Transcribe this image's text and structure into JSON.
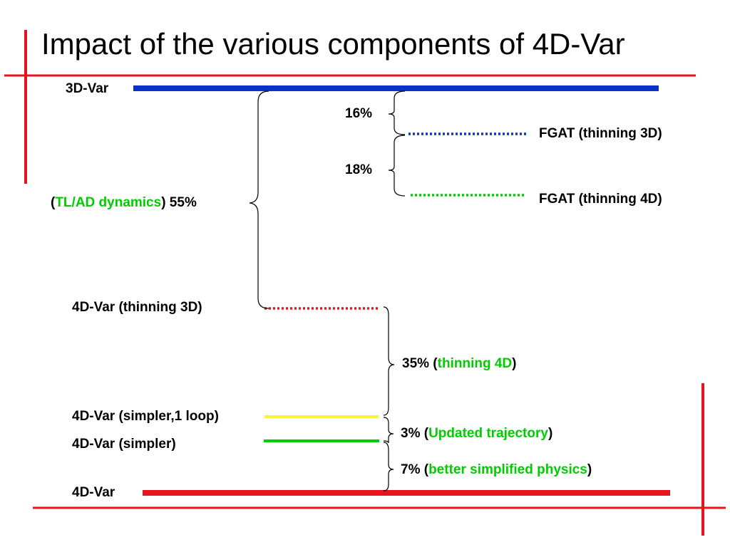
{
  "title": "Impact of the various components of 4D-Var",
  "colors": {
    "frame_red": "#e8141b",
    "blue": "#0a32c8",
    "green": "#00cc00",
    "yellow": "#f5f533",
    "red": "#e8141b"
  },
  "labels": {
    "var3d": "3D-Var",
    "fgat3d": "FGAT (thinning 3D)",
    "fgat4d": "FGAT (thinning 4D)",
    "var4d_thin3d": "4D-Var (thinning 3D)",
    "var4d_simpler1": "4D-Var (simpler,1 loop)",
    "var4d_simpler": "4D-Var (simpler)",
    "var4d": "4D-Var"
  },
  "impacts": {
    "p16": "16%",
    "p18": "18%",
    "tlad": {
      "open": "(",
      "term": "TL/AD dynamics",
      "rest": ") 55%"
    },
    "thin4d": {
      "pre": "35% (",
      "term": "thinning 4D",
      "post": ")"
    },
    "traj": {
      "pre": "3% (",
      "term": "Updated trajectory",
      "post": ")"
    },
    "phys": {
      "pre": "7% (",
      "term": "better simplified physics",
      "post": ")"
    }
  }
}
